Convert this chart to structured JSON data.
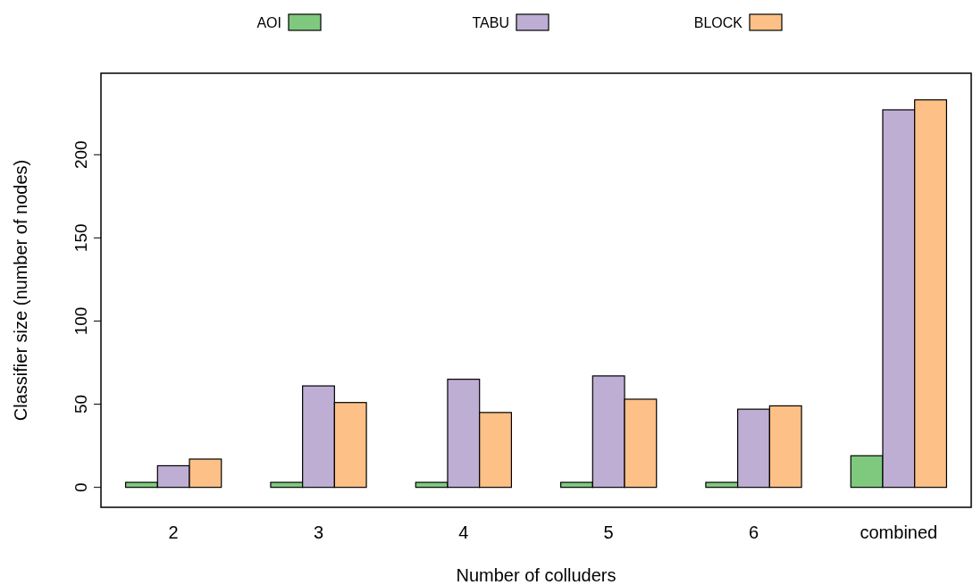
{
  "chart_data": {
    "type": "bar",
    "xlabel": "Number of colluders",
    "ylabel": "Classifier size (number of nodes)",
    "categories": [
      "2",
      "3",
      "4",
      "5",
      "6",
      "combined"
    ],
    "series": [
      {
        "name": "AOI",
        "color": "#7fc97f",
        "values": [
          3,
          3,
          3,
          3,
          3,
          19
        ]
      },
      {
        "name": "TABU",
        "color": "#beaed4",
        "values": [
          13,
          61,
          65,
          67,
          47,
          227
        ]
      },
      {
        "name": "BLOCK",
        "color": "#fdc086",
        "values": [
          17,
          51,
          45,
          53,
          49,
          233
        ]
      }
    ],
    "ylim": [
      -12,
      249
    ],
    "yticks": [
      0,
      50,
      100,
      150,
      200
    ],
    "grid": false,
    "legend": "top"
  }
}
